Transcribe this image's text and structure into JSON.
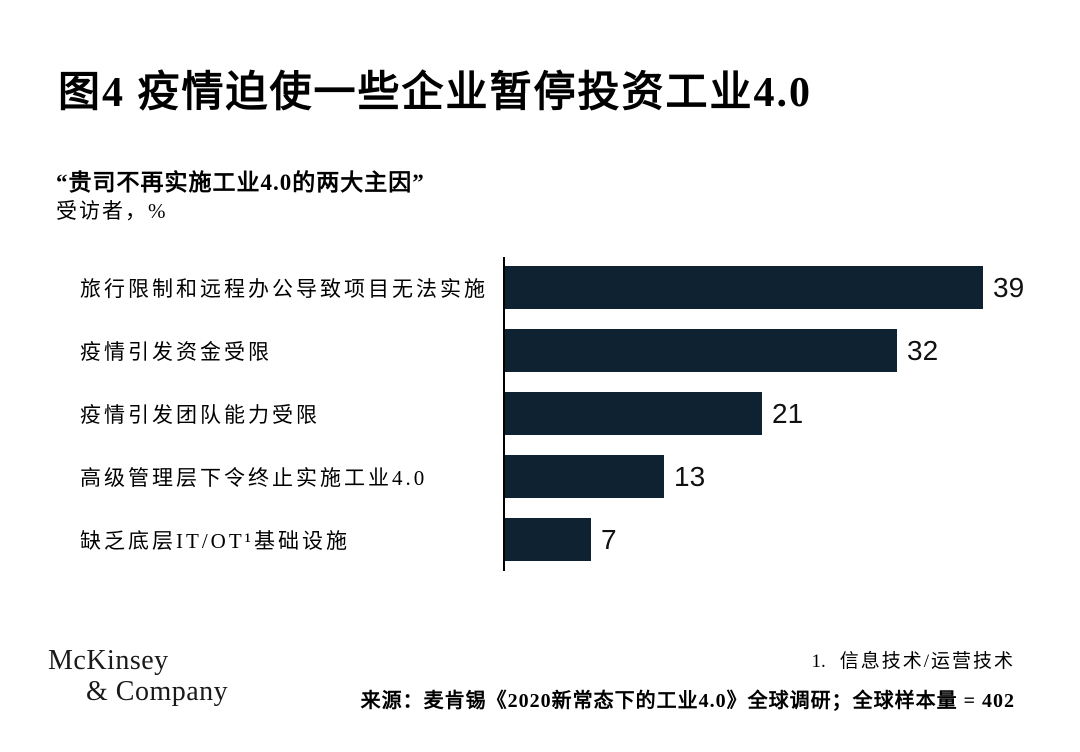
{
  "slide": {
    "title": "图4 疫情迫使一些企业暂停投资工业4.0",
    "subtitle_quote": "“贵司不再实施工业4.0的两大主因”",
    "unit_label": "受访者，%"
  },
  "chart_data": {
    "type": "bar",
    "orientation": "horizontal",
    "title": "图4 疫情迫使一些企业暂停投资工业4.0",
    "subtitle": "“贵司不再实施工业4.0的两大主因”",
    "value_unit": "受访者，%",
    "categories": [
      "旅行限制和远程办公导致项目无法实施",
      "疫情引发资金受限",
      "疫情引发团队能力受限",
      "高级管理层下令终止实施工业4.0",
      "缺乏底层IT/OT¹基础设施"
    ],
    "values": [
      39,
      32,
      21,
      13,
      7
    ],
    "xlim": [
      0,
      40
    ],
    "bar_color": "#0e2231",
    "grid": false,
    "legend": "none",
    "value_labels": "outside-end"
  },
  "footer": {
    "logo_line1": "McKinsey",
    "logo_line2": "& Company",
    "footnote_marker": "1.",
    "footnote_text": "信息技术/运营技术",
    "source_text": "来源：麦肯锡《2020新常态下的工业4.0》全球调研；全球样本量 = 402"
  }
}
